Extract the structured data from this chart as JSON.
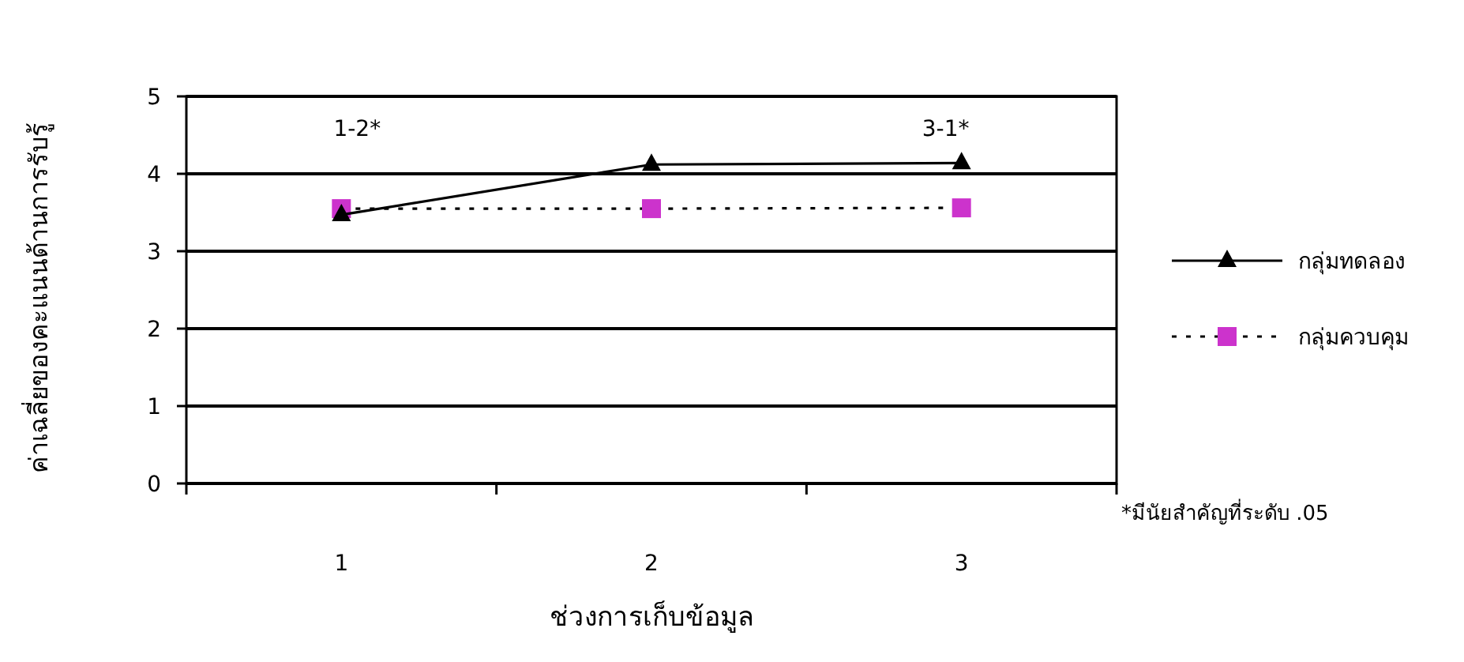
{
  "chart_data": {
    "type": "line",
    "xlabel": "ช่วงการเก็บข้อมูล",
    "ylabel": "ค่าเฉลี่ยของคะแนนด้านการรับรู้",
    "categories": [
      "1",
      "2",
      "3"
    ],
    "series": [
      {
        "name": "กลุ่มทดลอง",
        "color": "#000000",
        "values": [
          3.47,
          4.12,
          4.14
        ],
        "marker": "triangle",
        "line_style": "solid"
      },
      {
        "name": "กลุ่มควบคุม",
        "color": "#cc33cc",
        "values": [
          3.55,
          3.55,
          3.56
        ],
        "marker": "square",
        "line_style": "dotted"
      }
    ],
    "ylim": [
      0,
      5
    ],
    "yticks": [
      0,
      1,
      2,
      3,
      4,
      5
    ],
    "grid": "y",
    "legend": "right",
    "annotations": [
      "1-2*",
      "3-1*",
      "*มีนัยสำคัญที่ระดับ .05"
    ]
  }
}
